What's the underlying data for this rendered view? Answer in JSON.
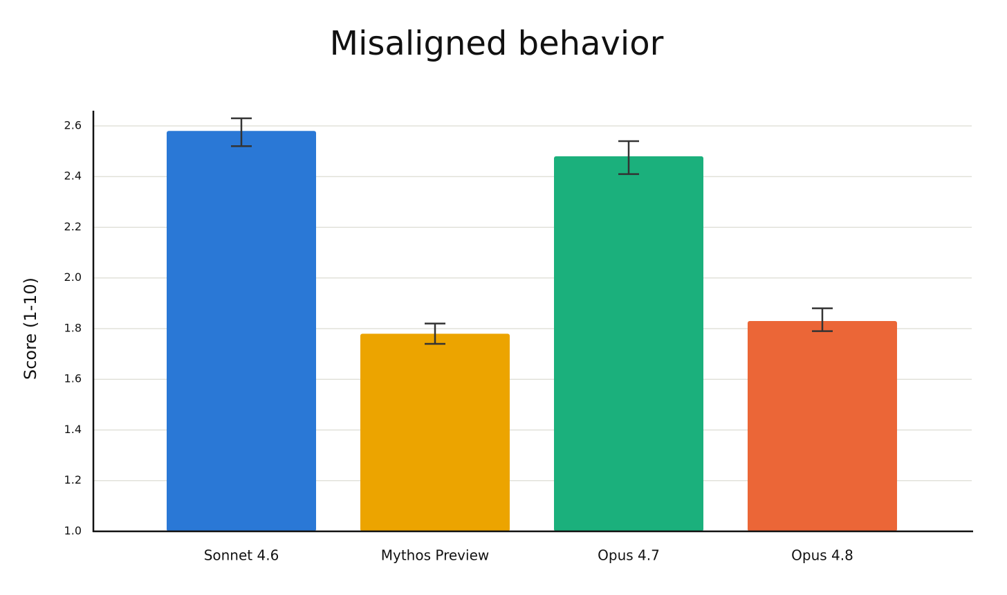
{
  "chart_data": {
    "type": "bar",
    "title": "Misaligned behavior",
    "y_label": "Score (1-10)",
    "categories": [
      "Sonnet 4.6",
      "Mythos Preview",
      "Opus 4.7",
      "Opus 4.8"
    ],
    "values": [
      2.58,
      1.78,
      2.48,
      1.83
    ],
    "ci_low": [
      2.52,
      1.74,
      2.41,
      1.79
    ],
    "ci_high": [
      2.63,
      1.82,
      2.54,
      1.88
    ],
    "colors": [
      "#2a78d6",
      "#eca400",
      "#1bb07c",
      "#eb6637"
    ],
    "ylim": [
      1.0,
      2.66
    ],
    "yticks": [
      {
        "value": 1,
        "label": "1.0"
      },
      1.2,
      1.4,
      1.6,
      1.8,
      {
        "value": 2,
        "label": "2.0"
      },
      2.2,
      2.4,
      2.6
    ],
    "grid": true
  }
}
